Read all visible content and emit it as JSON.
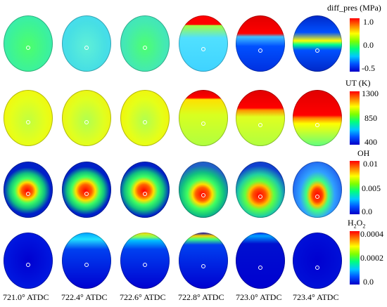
{
  "colorbars": [
    {
      "key": "diff_pres",
      "title": "diff_pres (MPa)",
      "ticks": [
        "1.0",
        "0.0",
        "-0.5"
      ]
    },
    {
      "key": "UT",
      "title": "UT (K)",
      "ticks": [
        "1300",
        "850",
        "400"
      ]
    },
    {
      "key": "OH",
      "title": "OH",
      "ticks": [
        "0.01",
        "0.005",
        "0.0"
      ]
    },
    {
      "key": "H2O2",
      "title_main": "H",
      "title_sub1": "2",
      "title_mid": "O",
      "title_sub2": "2",
      "ticks": [
        "0.0004",
        "0.0002",
        "0.0"
      ]
    }
  ],
  "crank_angles": [
    "721.0° ATDC",
    "722.4° ATDC",
    "722.6° ATDC",
    "722.8° ATDC",
    "723.0° ATDC",
    "723.4° ATDC"
  ],
  "colors": {
    "jet": [
      "#0000c8",
      "#0050ff",
      "#00c8ff",
      "#00ff7f",
      "#7fff00",
      "#ffff00",
      "#ff8000",
      "#ff0000"
    ],
    "panel_outline": "#d000d0"
  }
}
